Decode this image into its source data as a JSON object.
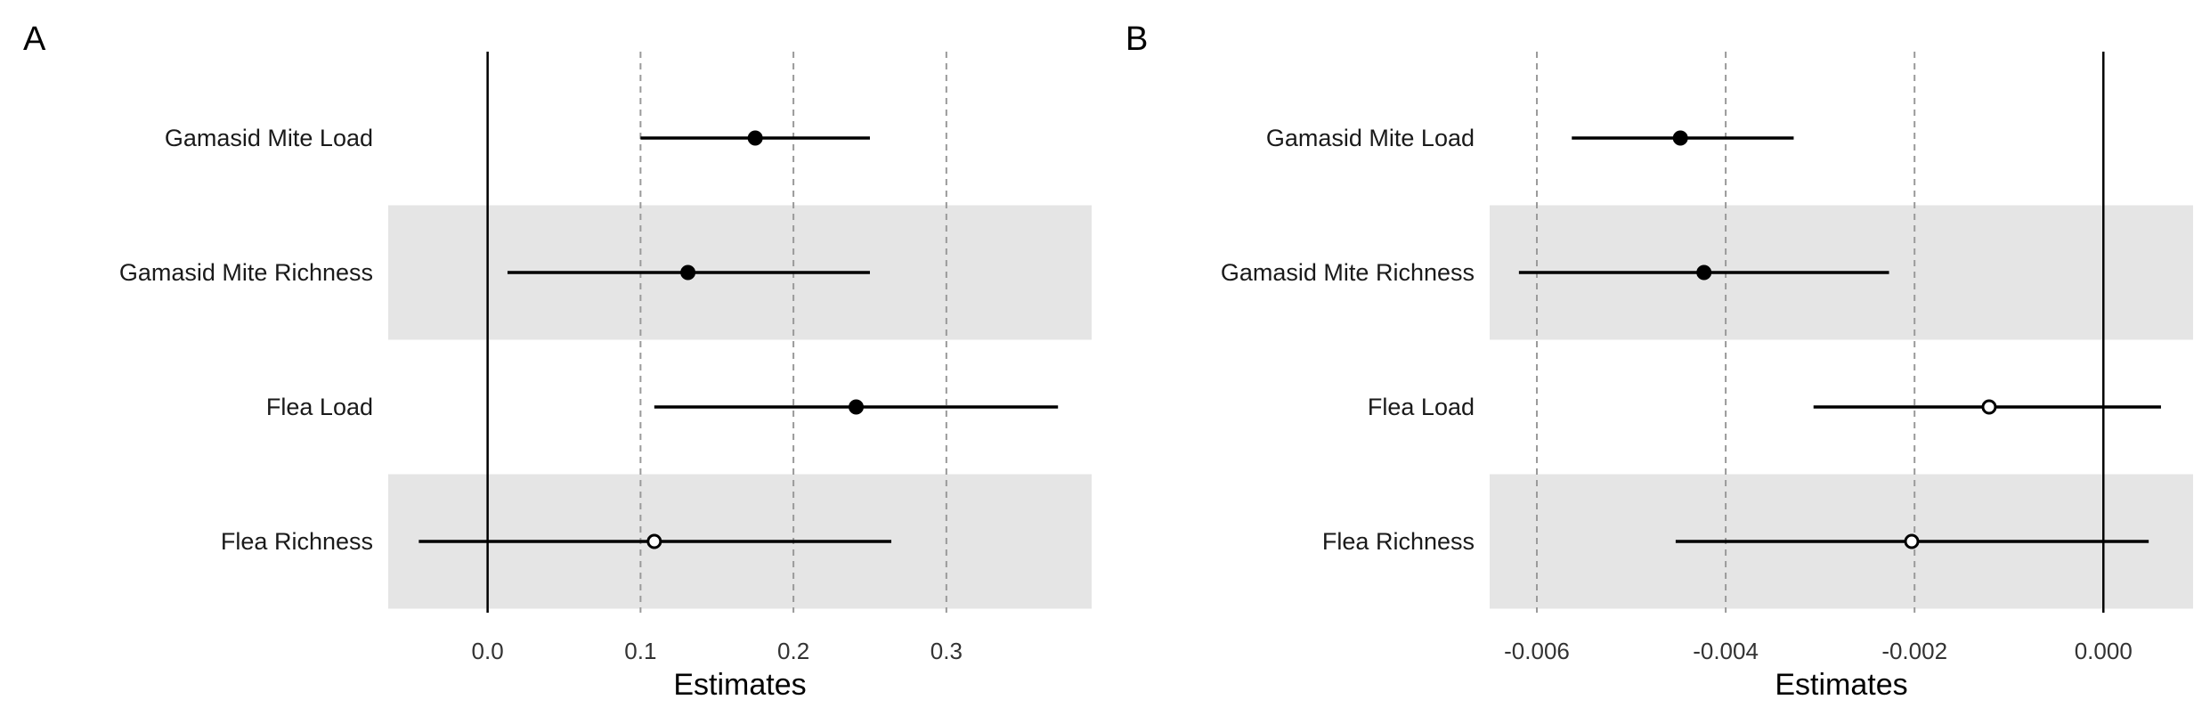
{
  "chart_data": [
    {
      "type": "forest",
      "panel_label": "A",
      "xlabel": "Estimates",
      "xlim": [
        -0.065,
        0.395
      ],
      "xticks": [
        0.0,
        0.1,
        0.2,
        0.3
      ],
      "xtick_labels": [
        "0.0",
        "0.1",
        "0.2",
        "0.3"
      ],
      "reference_line": 0,
      "grid": "dashed vertical at ticks",
      "categories": [
        "Gamasid Mite Load",
        "Gamasid Mite Richness",
        "Flea Load",
        "Flea Richness"
      ],
      "points": [
        {
          "label": "Gamasid Mite Load",
          "estimate": 0.175,
          "low": 0.1,
          "high": 0.25,
          "significant": true
        },
        {
          "label": "Gamasid Mite Richness",
          "estimate": 0.131,
          "low": 0.013,
          "high": 0.25,
          "significant": true
        },
        {
          "label": "Flea Load",
          "estimate": 0.241,
          "low": 0.109,
          "high": 0.373,
          "significant": true
        },
        {
          "label": "Flea Richness",
          "estimate": 0.109,
          "low": -0.045,
          "high": 0.264,
          "significant": false
        }
      ]
    },
    {
      "type": "forest",
      "panel_label": "B",
      "xlabel": "Estimates",
      "xlim": [
        -0.0065,
        0.00095
      ],
      "xticks": [
        -0.006,
        -0.004,
        -0.002,
        0.0
      ],
      "xtick_labels": [
        "-0.006",
        "-0.004",
        "-0.002",
        "0.000"
      ],
      "reference_line": 0,
      "grid": "dashed vertical at ticks",
      "categories": [
        "Gamasid Mite Load",
        "Gamasid Mite Richness",
        "Flea Load",
        "Flea Richness"
      ],
      "points": [
        {
          "label": "Gamasid Mite Load",
          "estimate": -0.00448,
          "low": -0.00563,
          "high": -0.00328,
          "significant": true
        },
        {
          "label": "Gamasid Mite Richness",
          "estimate": -0.00423,
          "low": -0.00619,
          "high": -0.00227,
          "significant": true
        },
        {
          "label": "Flea Load",
          "estimate": -0.00121,
          "low": -0.00307,
          "high": 0.00061,
          "significant": false
        },
        {
          "label": "Flea Richness",
          "estimate": -0.00203,
          "low": -0.00453,
          "high": 0.00048,
          "significant": false
        }
      ]
    }
  ],
  "colors": {
    "band": "#e5e5e5",
    "line": "#000000",
    "grid": "#9a9a9a",
    "point_fill_significant": "#000000",
    "point_fill_nonsignificant": "#ffffff"
  }
}
